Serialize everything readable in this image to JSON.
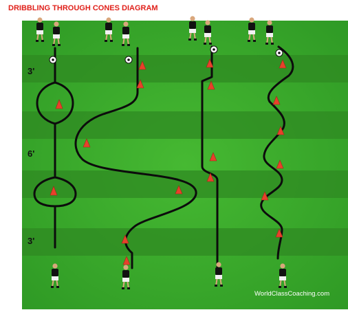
{
  "title": "DRIBBLING THROUGH CONES DIAGRAM",
  "distance_labels": [
    "3'",
    "6'",
    "3'"
  ],
  "credit": "WorldClassCoaching.com",
  "colors": {
    "title": "#e0201a",
    "grass_light": "#3eae2a",
    "grass_dark": "#2f8f22",
    "path": "#0c0c0c",
    "cone": "#e8412b",
    "player_shirt": "#111111",
    "player_shorts": "#f2f2f2"
  }
}
